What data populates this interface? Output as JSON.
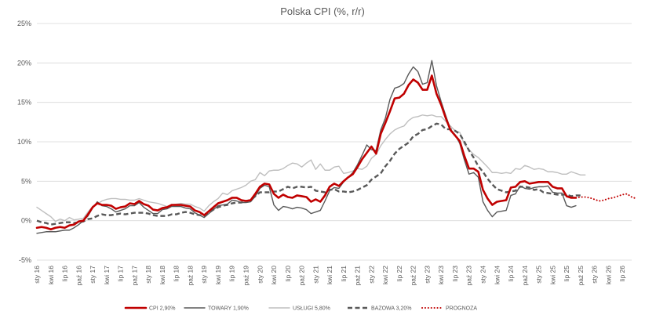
{
  "chart_data": {
    "type": "line",
    "title": "Polska CPI (%, r/r)",
    "xlabel": "",
    "ylabel": "",
    "ylim": [
      -5,
      25
    ],
    "yticks": [
      -5,
      0,
      5,
      10,
      15,
      20,
      25
    ],
    "ytick_labels": [
      "-5%",
      "0%",
      "5%",
      "10%",
      "15%",
      "20%",
      "25%"
    ],
    "x_range": [
      0,
      128
    ],
    "x_ticks": [
      {
        "x": 0,
        "label": "sty 16"
      },
      {
        "x": 3,
        "label": "kwi 16"
      },
      {
        "x": 6,
        "label": "lip 16"
      },
      {
        "x": 9,
        "label": "paź 16"
      },
      {
        "x": 12,
        "label": "sty 17"
      },
      {
        "x": 15,
        "label": "kwi 17"
      },
      {
        "x": 18,
        "label": "lip 17"
      },
      {
        "x": 21,
        "label": "paź 17"
      },
      {
        "x": 24,
        "label": "sty 18"
      },
      {
        "x": 27,
        "label": "kwi 18"
      },
      {
        "x": 30,
        "label": "lip 18"
      },
      {
        "x": 33,
        "label": "paź 18"
      },
      {
        "x": 36,
        "label": "sty 19"
      },
      {
        "x": 39,
        "label": "kwi 19"
      },
      {
        "x": 42,
        "label": "lip 19"
      },
      {
        "x": 45,
        "label": "paź 19"
      },
      {
        "x": 48,
        "label": "sty 20"
      },
      {
        "x": 51,
        "label": "kwi 20"
      },
      {
        "x": 54,
        "label": "lip 20"
      },
      {
        "x": 57,
        "label": "paź 20"
      },
      {
        "x": 60,
        "label": "sty 21"
      },
      {
        "x": 63,
        "label": "kwi 21"
      },
      {
        "x": 66,
        "label": "lip 21"
      },
      {
        "x": 69,
        "label": "paź 21"
      },
      {
        "x": 72,
        "label": "sty 22"
      },
      {
        "x": 75,
        "label": "kwi 22"
      },
      {
        "x": 78,
        "label": "lip 22"
      },
      {
        "x": 81,
        "label": "paź 22"
      },
      {
        "x": 84,
        "label": "sty 23"
      },
      {
        "x": 87,
        "label": "kwi 23"
      },
      {
        "x": 90,
        "label": "lip 23"
      },
      {
        "x": 93,
        "label": "paź 23"
      },
      {
        "x": 96,
        "label": "sty 24"
      },
      {
        "x": 99,
        "label": "kwi 24"
      },
      {
        "x": 102,
        "label": "lip 24"
      },
      {
        "x": 105,
        "label": "paź 24"
      },
      {
        "x": 108,
        "label": "sty 25"
      },
      {
        "x": 111,
        "label": "kwi 25"
      },
      {
        "x": 114,
        "label": "lip 25"
      },
      {
        "x": 117,
        "label": "paź 25"
      },
      {
        "x": 120,
        "label": "sty 26"
      },
      {
        "x": 123,
        "label": "kwi 26"
      },
      {
        "x": 126,
        "label": "lip 26"
      }
    ],
    "series": [
      {
        "name": "CPI 2,90%",
        "color": "#c00000",
        "style": "solid-thick",
        "x_start": 0,
        "values": [
          -0.9,
          -0.8,
          -0.9,
          -1.1,
          -0.9,
          -0.8,
          -0.9,
          -0.6,
          -0.5,
          -0.1,
          0.0,
          0.8,
          1.7,
          2.2,
          2.0,
          2.0,
          1.9,
          1.5,
          1.7,
          1.8,
          2.2,
          2.1,
          2.5,
          2.1,
          1.9,
          1.4,
          1.3,
          1.6,
          1.7,
          2.0,
          2.0,
          2.0,
          1.9,
          1.8,
          1.3,
          1.1,
          0.7,
          1.2,
          1.7,
          2.2,
          2.4,
          2.6,
          2.9,
          2.9,
          2.6,
          2.5,
          2.6,
          3.4,
          4.3,
          4.7,
          4.6,
          3.4,
          2.9,
          3.3,
          3.0,
          2.9,
          3.2,
          3.1,
          3.0,
          2.4,
          2.7,
          2.4,
          3.2,
          4.3,
          4.7,
          4.4,
          5.0,
          5.5,
          5.9,
          6.8,
          7.8,
          8.6,
          9.4,
          8.5,
          11.0,
          12.4,
          13.9,
          15.5,
          15.6,
          16.1,
          17.2,
          17.9,
          17.5,
          16.6,
          16.6,
          18.4,
          16.1,
          14.7,
          13.0,
          11.5,
          10.8,
          10.1,
          8.2,
          6.6,
          6.6,
          6.2,
          3.9,
          2.8,
          2.0,
          2.4,
          2.5,
          2.6,
          4.2,
          4.3,
          4.9,
          5.0,
          4.7,
          4.8,
          4.9,
          4.9,
          4.9,
          4.3,
          4.1,
          4.1,
          3.1,
          2.9,
          2.9
        ]
      },
      {
        "name": "TOWARY 1,90%",
        "color": "#595959",
        "style": "solid",
        "x_start": 0,
        "values": [
          -1.6,
          -1.5,
          -1.4,
          -1.4,
          -1.4,
          -1.3,
          -1.2,
          -1.2,
          -0.9,
          -0.5,
          0.0,
          0.6,
          1.6,
          2.4,
          1.9,
          1.8,
          1.5,
          1.1,
          1.3,
          1.5,
          1.9,
          1.9,
          2.3,
          1.7,
          1.3,
          0.9,
          0.9,
          1.4,
          1.5,
          1.8,
          1.8,
          1.8,
          1.6,
          1.5,
          1.0,
          0.7,
          0.4,
          0.9,
          1.4,
          1.9,
          2.0,
          2.1,
          2.6,
          2.5,
          2.3,
          2.3,
          2.4,
          3.1,
          4.1,
          4.5,
          4.3,
          2.0,
          1.3,
          1.8,
          1.7,
          1.5,
          1.7,
          1.6,
          1.4,
          0.9,
          1.1,
          1.3,
          2.5,
          3.8,
          4.2,
          4.1,
          4.9,
          5.5,
          6.1,
          7.1,
          8.3,
          9.6,
          9.0,
          8.9,
          11.5,
          13.0,
          15.4,
          16.8,
          17.0,
          17.4,
          18.6,
          19.5,
          18.9,
          17.3,
          17.5,
          20.3,
          17.1,
          15.1,
          13.3,
          11.6,
          10.9,
          9.8,
          7.7,
          5.9,
          6.1,
          5.5,
          2.4,
          1.3,
          0.5,
          1.1,
          1.2,
          1.3,
          3.2,
          3.4,
          4.4,
          4.1,
          4.0,
          4.2,
          4.3,
          4.3,
          4.4,
          3.6,
          3.5,
          3.5,
          1.9,
          1.7,
          1.9
        ]
      },
      {
        "name": "USŁUGI 5,80%",
        "color": "#bfbfbf",
        "style": "solid",
        "x_start": 0,
        "values": [
          1.7,
          1.3,
          0.9,
          0.5,
          -0.1,
          0.2,
          0.0,
          0.4,
          0.1,
          0.2,
          0.3,
          1.1,
          1.8,
          2.1,
          2.5,
          2.7,
          2.8,
          2.8,
          2.7,
          2.7,
          2.6,
          2.6,
          2.8,
          2.6,
          2.4,
          2.3,
          2.2,
          2.0,
          1.8,
          2.0,
          2.1,
          2.2,
          2.1,
          2.1,
          1.8,
          1.6,
          1.2,
          1.9,
          2.4,
          2.8,
          3.5,
          3.3,
          3.8,
          4.0,
          4.2,
          4.5,
          5.0,
          5.2,
          6.1,
          5.7,
          6.3,
          6.4,
          6.4,
          6.6,
          7.0,
          7.3,
          7.2,
          6.8,
          7.3,
          7.7,
          6.5,
          7.2,
          6.4,
          6.4,
          6.8,
          6.9,
          6.0,
          6.1,
          6.3,
          6.6,
          6.5,
          6.9,
          7.9,
          8.4,
          9.5,
          10.3,
          11.0,
          11.5,
          11.8,
          12.0,
          12.7,
          13.1,
          13.2,
          13.4,
          13.3,
          13.4,
          13.2,
          13.2,
          12.6,
          12.0,
          11.4,
          11.2,
          9.7,
          9.0,
          8.4,
          8.0,
          7.4,
          6.8,
          6.1,
          6.1,
          6.0,
          6.1,
          6.0,
          6.6,
          6.5,
          7.0,
          6.8,
          6.5,
          6.6,
          6.5,
          6.2,
          6.2,
          6.1,
          5.9,
          5.9,
          6.2,
          6.0,
          5.8,
          5.8
        ]
      },
      {
        "name": "BAZOWA 3,20%",
        "color": "#595959",
        "style": "dashed",
        "x_start": 0,
        "values": [
          0.0,
          -0.2,
          -0.3,
          -0.5,
          -0.4,
          -0.3,
          -0.2,
          -0.2,
          -0.3,
          -0.2,
          -0.1,
          0.2,
          0.3,
          0.6,
          0.8,
          0.7,
          0.7,
          0.8,
          0.9,
          0.8,
          0.9,
          1.0,
          1.0,
          1.0,
          0.9,
          0.7,
          0.6,
          0.6,
          0.6,
          0.8,
          0.8,
          1.0,
          1.1,
          1.0,
          0.8,
          0.7,
          0.6,
          1.0,
          1.4,
          1.7,
          1.9,
          2.0,
          2.2,
          2.3,
          2.3,
          2.5,
          2.6,
          3.1,
          3.6,
          3.6,
          3.6,
          3.7,
          3.7,
          4.0,
          4.3,
          4.1,
          4.3,
          4.3,
          4.2,
          4.3,
          3.8,
          3.7,
          3.6,
          3.9,
          4.0,
          3.7,
          3.7,
          3.6,
          3.7,
          3.9,
          4.2,
          4.5,
          5.2,
          5.6,
          6.0,
          6.9,
          7.6,
          8.5,
          9.1,
          9.5,
          9.9,
          10.7,
          11.0,
          11.5,
          11.6,
          12.0,
          12.3,
          12.2,
          11.6,
          11.6,
          11.4,
          11.0,
          10.0,
          8.9,
          8.0,
          6.9,
          6.2,
          5.3,
          4.6,
          4.0,
          3.8,
          3.6,
          3.7,
          3.8,
          4.3,
          4.3,
          4.2,
          3.9,
          4.0,
          3.6,
          3.5,
          3.4,
          3.3,
          3.3,
          3.3,
          3.1,
          3.2,
          3.2
        ]
      },
      {
        "name": "PROGNOZA",
        "color": "#c00000",
        "style": "dotted",
        "x_start": 116,
        "values": [
          2.9,
          3.0,
          3.0,
          2.9,
          2.7,
          2.5,
          2.6,
          2.8,
          2.9,
          3.1,
          3.3,
          3.4,
          3.0,
          2.8
        ]
      }
    ],
    "legend": {
      "position": "bottom",
      "entries": [
        "CPI 2,90%",
        "TOWARY 1,90%",
        "USŁUGI 5,80%",
        "BAZOWA 3,20%",
        "PROGNOZA"
      ]
    },
    "grid": {
      "y": true,
      "x": false
    }
  }
}
